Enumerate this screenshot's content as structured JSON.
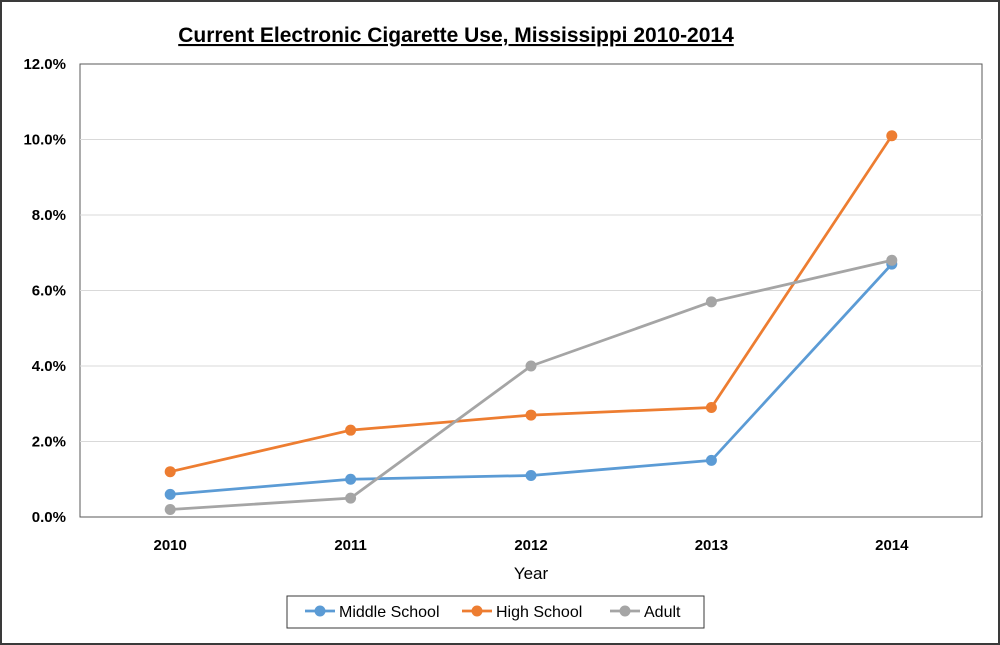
{
  "chart_data": {
    "type": "line",
    "title": "Current Electronic Cigarette Use, Mississippi 2010-2014",
    "xlabel": "Year",
    "ylabel": "",
    "categories": [
      "2010",
      "2011",
      "2012",
      "2013",
      "2014"
    ],
    "y_ticks": [
      "0.0%",
      "2.0%",
      "4.0%",
      "6.0%",
      "8.0%",
      "10.0%",
      "12.0%"
    ],
    "ylim": [
      0,
      12
    ],
    "grid": true,
    "legend_position": "bottom",
    "series": [
      {
        "name": "Middle School",
        "color": "#5b9bd5",
        "values": [
          0.6,
          1.0,
          1.1,
          1.5,
          6.7
        ]
      },
      {
        "name": "High School",
        "color": "#ed7d31",
        "values": [
          1.2,
          2.3,
          2.7,
          2.9,
          10.1
        ]
      },
      {
        "name": "Adult",
        "color": "#a5a5a5",
        "values": [
          0.2,
          0.5,
          4.0,
          5.7,
          6.8
        ]
      }
    ]
  }
}
